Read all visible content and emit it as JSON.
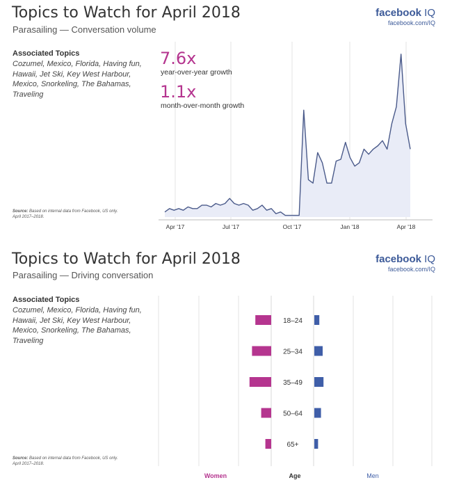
{
  "panels": [
    {
      "title": "Topics to Watch for April 2018",
      "subtitle": "Parasailing — Conversation volume",
      "brand": {
        "name": "facebook",
        "suffix": "IQ",
        "url": "facebook.com/IQ"
      },
      "topics_heading": "Associated Topics",
      "topics_text": "Cozumel, Mexico, Florida, Having fun, Hawaii, Jet Ski, Key West Harbour, Mexico, Snorkeling, The Bahamas, Traveling",
      "source_label": "Source:",
      "source_text": "Based on internal data from Facebook, US only.",
      "source_period": "April 2017–2018.",
      "stats": [
        {
          "value": "7.6x",
          "label": "year-over-year growth"
        },
        {
          "value": "1.1x",
          "label": "month-over-month growth"
        }
      ]
    },
    {
      "title": "Topics to Watch for April 2018",
      "subtitle": "Parasailing — Driving conversation",
      "brand": {
        "name": "facebook",
        "suffix": "IQ",
        "url": "facebook.com/IQ"
      },
      "topics_heading": "Associated Topics",
      "topics_text": "Cozumel, Mexico, Florida, Having fun, Hawaii, Jet Ski, Key West Harbour, Mexico, Snorkeling, The Bahamas, Traveling",
      "source_label": "Source:",
      "source_text": "Based on internal data from Facebook, US only.",
      "source_period": "April 2017–2018."
    }
  ],
  "chart_data": [
    {
      "type": "area",
      "x_ticks": [
        "Apr '17",
        "Jul '17",
        "Oct '17",
        "Jan '18",
        "Apr '18"
      ],
      "grid": "vertical",
      "color_fill": "#e9ecf7",
      "color_line": "#4a5a8a",
      "ylim": [
        0,
        100
      ],
      "values": [
        3,
        5,
        4,
        5,
        4,
        6,
        5,
        5,
        7,
        7,
        6,
        8,
        7,
        8,
        11,
        8,
        7,
        8,
        7,
        4,
        5,
        7,
        4,
        5,
        2,
        3,
        1,
        1,
        1,
        1,
        63,
        22,
        20,
        38,
        32,
        20,
        20,
        33,
        34,
        44,
        35,
        30,
        32,
        40,
        37,
        40,
        42,
        45,
        40,
        55,
        65,
        96,
        55,
        40
      ]
    },
    {
      "type": "bar",
      "orientation": "horizontal-diverging",
      "categories": [
        "18–24",
        "25–34",
        "35–49",
        "50–64",
        "65+"
      ],
      "series": [
        {
          "name": "Women",
          "color": "#b5358f",
          "values": [
            3.8,
            4.6,
            5.2,
            2.4,
            1.4
          ]
        },
        {
          "name": "Men",
          "color": "#3f5ea8",
          "values": [
            1.2,
            2.0,
            2.2,
            1.6,
            0.9
          ]
        }
      ],
      "xlabel_left": "Women",
      "xlabel_center": "Age",
      "xlabel_right": "Men",
      "grid": "vertical"
    }
  ]
}
